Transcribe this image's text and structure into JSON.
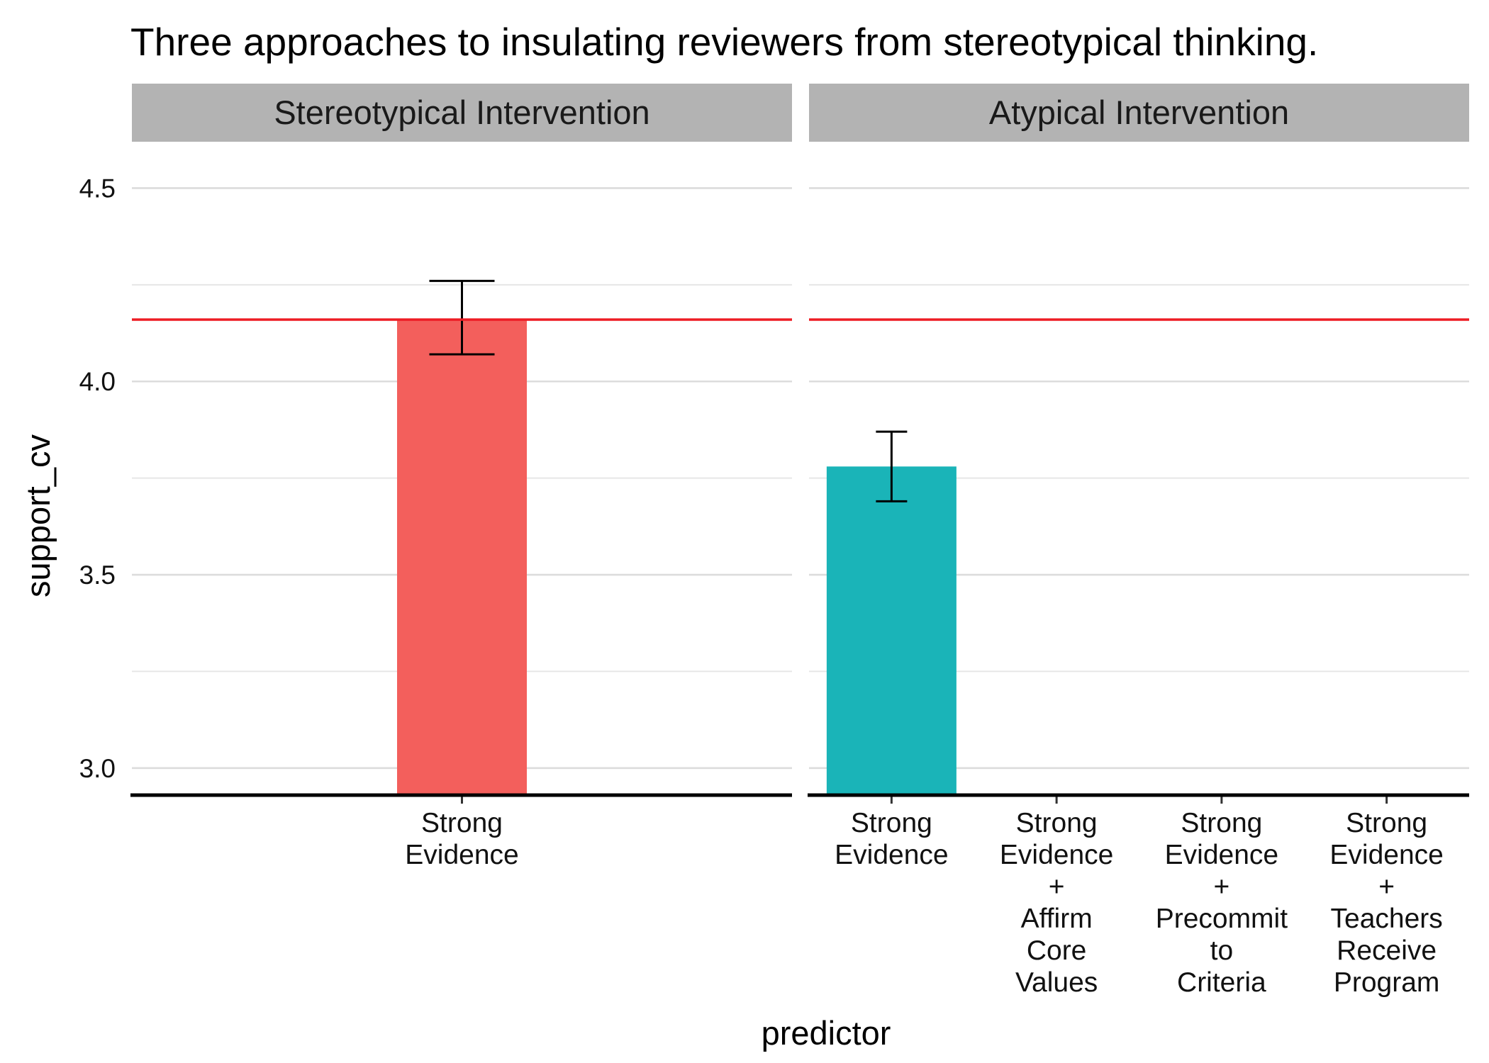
{
  "chart_data": {
    "type": "bar",
    "title": "Three approaches to insulating reviewers from stereotypical thinking.",
    "xlabel": "predictor",
    "ylabel": "support_cv",
    "ylim": [
      2.93,
      4.62
    ],
    "y_ticks": [
      3.0,
      3.5,
      4.0,
      4.5
    ],
    "y_tick_labels": [
      "3.0",
      "3.5",
      "4.0",
      "4.5"
    ],
    "y_minor_ticks": [
      3.25,
      3.75,
      4.25
    ],
    "grid": true,
    "reference_line": {
      "value": 4.16,
      "color": "#ed1c24"
    },
    "panels": [
      {
        "name": "Stereotypical Intervention",
        "color": "#f35f5c",
        "categories": [
          [
            "Strong",
            "Evidence"
          ]
        ],
        "values": [
          4.16
        ],
        "error_low": [
          4.07
        ],
        "error_high": [
          4.26
        ]
      },
      {
        "name": "Atypical Intervention",
        "color": "#1ab4b8",
        "categories": [
          [
            "Strong",
            "Evidence"
          ],
          [
            "Strong",
            "Evidence",
            "+",
            "Affirm",
            "Core",
            "Values"
          ],
          [
            "Strong",
            "Evidence",
            "+",
            "Precommit",
            "to",
            "Criteria"
          ],
          [
            "Strong",
            "Evidence",
            "+",
            "Teachers",
            "Receive",
            "Program"
          ]
        ],
        "values": [
          3.78,
          null,
          null,
          null
        ],
        "error_low": [
          3.69,
          null,
          null,
          null
        ],
        "error_high": [
          3.87,
          null,
          null,
          null
        ]
      }
    ]
  }
}
